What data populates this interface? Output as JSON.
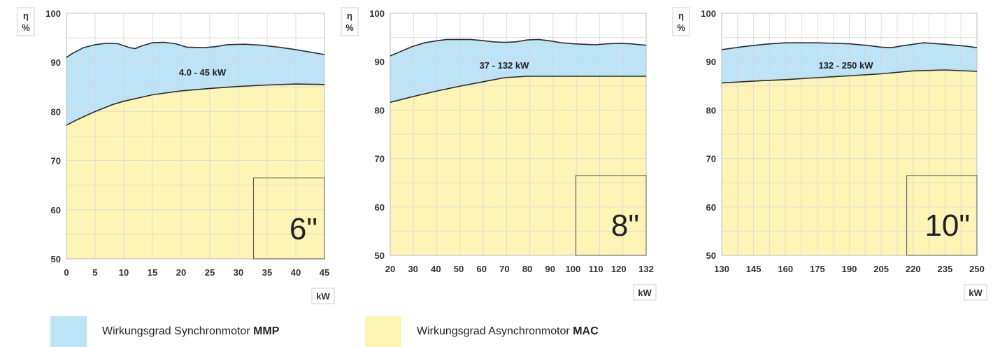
{
  "colors": {
    "synchron_fill": "#bde3f7",
    "asynchron_fill": "#fdf4b6",
    "line": "#2b2b2b",
    "grid": "#d6d6d6"
  },
  "legend": {
    "items": [
      {
        "text": "Wirkungsgrad Synchronmotor ",
        "bold": "MMP",
        "color": "#bde3f7"
      },
      {
        "text": "Wirkungsgrad Asynchronmotor ",
        "bold": "MAC",
        "color": "#fdf4b6"
      }
    ]
  },
  "chart_data": [
    {
      "type": "area",
      "y_label_symbol": "η",
      "y_label_unit": "%",
      "x_unit": "kW",
      "ylim": [
        50,
        100
      ],
      "y_ticks": [
        50,
        60,
        70,
        80,
        90,
        100
      ],
      "xlim": [
        0,
        45
      ],
      "x_ticks": [
        0,
        5,
        10,
        15,
        20,
        25,
        30,
        35,
        40,
        45
      ],
      "range_label": "4.0 - 45 kW",
      "size_label": "6\"",
      "grid": true,
      "series": [
        {
          "name": "Wirkungsgrad Synchronmotor MMP",
          "points": [
            [
              0,
              91.0
            ],
            [
              1,
              91.8
            ],
            [
              3,
              93.0
            ],
            [
              5,
              93.6
            ],
            [
              7,
              93.9
            ],
            [
              9,
              93.8
            ],
            [
              11,
              93.0
            ],
            [
              12,
              92.8
            ],
            [
              13,
              93.3
            ],
            [
              15,
              94.0
            ],
            [
              17,
              94.1
            ],
            [
              19,
              93.8
            ],
            [
              21,
              93.1
            ],
            [
              24,
              93.0
            ],
            [
              26,
              93.2
            ],
            [
              28,
              93.6
            ],
            [
              31,
              93.7
            ],
            [
              34,
              93.5
            ],
            [
              37,
              93.1
            ],
            [
              40,
              92.6
            ],
            [
              43,
              92.0
            ],
            [
              45,
              91.6
            ]
          ]
        },
        {
          "name": "Wirkungsgrad Asynchronmotor MAC",
          "points": [
            [
              0,
              77.2
            ],
            [
              2,
              78.4
            ],
            [
              5,
              80.0
            ],
            [
              8,
              81.4
            ],
            [
              10,
              82.1
            ],
            [
              15,
              83.4
            ],
            [
              20,
              84.2
            ],
            [
              25,
              84.7
            ],
            [
              30,
              85.1
            ],
            [
              35,
              85.4
            ],
            [
              40,
              85.6
            ],
            [
              45,
              85.5
            ]
          ]
        }
      ]
    },
    {
      "type": "area",
      "y_label_symbol": "η",
      "y_label_unit": "%",
      "x_unit": "kW",
      "ylim": [
        50,
        100
      ],
      "y_ticks": [
        50,
        60,
        70,
        80,
        90,
        100
      ],
      "xlim": [
        20,
        132
      ],
      "x_ticks": [
        20,
        30,
        40,
        50,
        60,
        70,
        80,
        90,
        100,
        110,
        120,
        132
      ],
      "range_label": "37 - 132 kW",
      "size_label": "8\"",
      "grid": true,
      "series": [
        {
          "name": "Wirkungsgrad Synchronmotor MMP",
          "points": [
            [
              20,
              91.2
            ],
            [
              25,
              92.2
            ],
            [
              30,
              93.2
            ],
            [
              35,
              93.9
            ],
            [
              40,
              94.3
            ],
            [
              45,
              94.6
            ],
            [
              50,
              94.6
            ],
            [
              55,
              94.6
            ],
            [
              60,
              94.4
            ],
            [
              65,
              94.1
            ],
            [
              70,
              94.0
            ],
            [
              75,
              94.1
            ],
            [
              80,
              94.5
            ],
            [
              85,
              94.6
            ],
            [
              90,
              94.3
            ],
            [
              95,
              93.9
            ],
            [
              100,
              93.7
            ],
            [
              105,
              93.6
            ],
            [
              110,
              93.5
            ],
            [
              115,
              93.7
            ],
            [
              120,
              93.8
            ],
            [
              125,
              93.7
            ],
            [
              132,
              93.4
            ]
          ]
        },
        {
          "name": "Wirkungsgrad Asynchronmotor MAC",
          "points": [
            [
              20,
              81.6
            ],
            [
              30,
              82.8
            ],
            [
              40,
              83.9
            ],
            [
              50,
              84.9
            ],
            [
              60,
              85.8
            ],
            [
              70,
              86.7
            ],
            [
              80,
              87.0
            ],
            [
              90,
              87.0
            ],
            [
              100,
              87.0
            ],
            [
              110,
              87.0
            ],
            [
              120,
              87.0
            ],
            [
              132,
              87.0
            ]
          ]
        }
      ]
    },
    {
      "type": "area",
      "y_label_symbol": "η",
      "y_label_unit": "%",
      "x_unit": "kW",
      "ylim": [
        50,
        100
      ],
      "y_ticks": [
        50,
        60,
        70,
        80,
        90,
        100
      ],
      "xlim": [
        130,
        250
      ],
      "x_ticks": [
        130,
        145,
        160,
        175,
        190,
        205,
        220,
        235,
        250
      ],
      "range_label": "132 - 250 kW",
      "size_label": "10\"",
      "grid": true,
      "series": [
        {
          "name": "Wirkungsgrad Synchronmotor MMP",
          "points": [
            [
              130,
              92.5
            ],
            [
              140,
              93.1
            ],
            [
              150,
              93.6
            ],
            [
              160,
              93.9
            ],
            [
              175,
              93.9
            ],
            [
              190,
              93.7
            ],
            [
              200,
              93.3
            ],
            [
              205,
              93.0
            ],
            [
              210,
              92.9
            ],
            [
              215,
              93.3
            ],
            [
              225,
              93.9
            ],
            [
              235,
              93.6
            ],
            [
              245,
              93.2
            ],
            [
              250,
              92.9
            ]
          ]
        },
        {
          "name": "Wirkungsgrad Asynchronmotor MAC",
          "points": [
            [
              130,
              85.6
            ],
            [
              145,
              86.0
            ],
            [
              160,
              86.3
            ],
            [
              175,
              86.7
            ],
            [
              190,
              87.1
            ],
            [
              205,
              87.5
            ],
            [
              220,
              88.1
            ],
            [
              235,
              88.3
            ],
            [
              250,
              88.0
            ]
          ]
        }
      ]
    }
  ]
}
